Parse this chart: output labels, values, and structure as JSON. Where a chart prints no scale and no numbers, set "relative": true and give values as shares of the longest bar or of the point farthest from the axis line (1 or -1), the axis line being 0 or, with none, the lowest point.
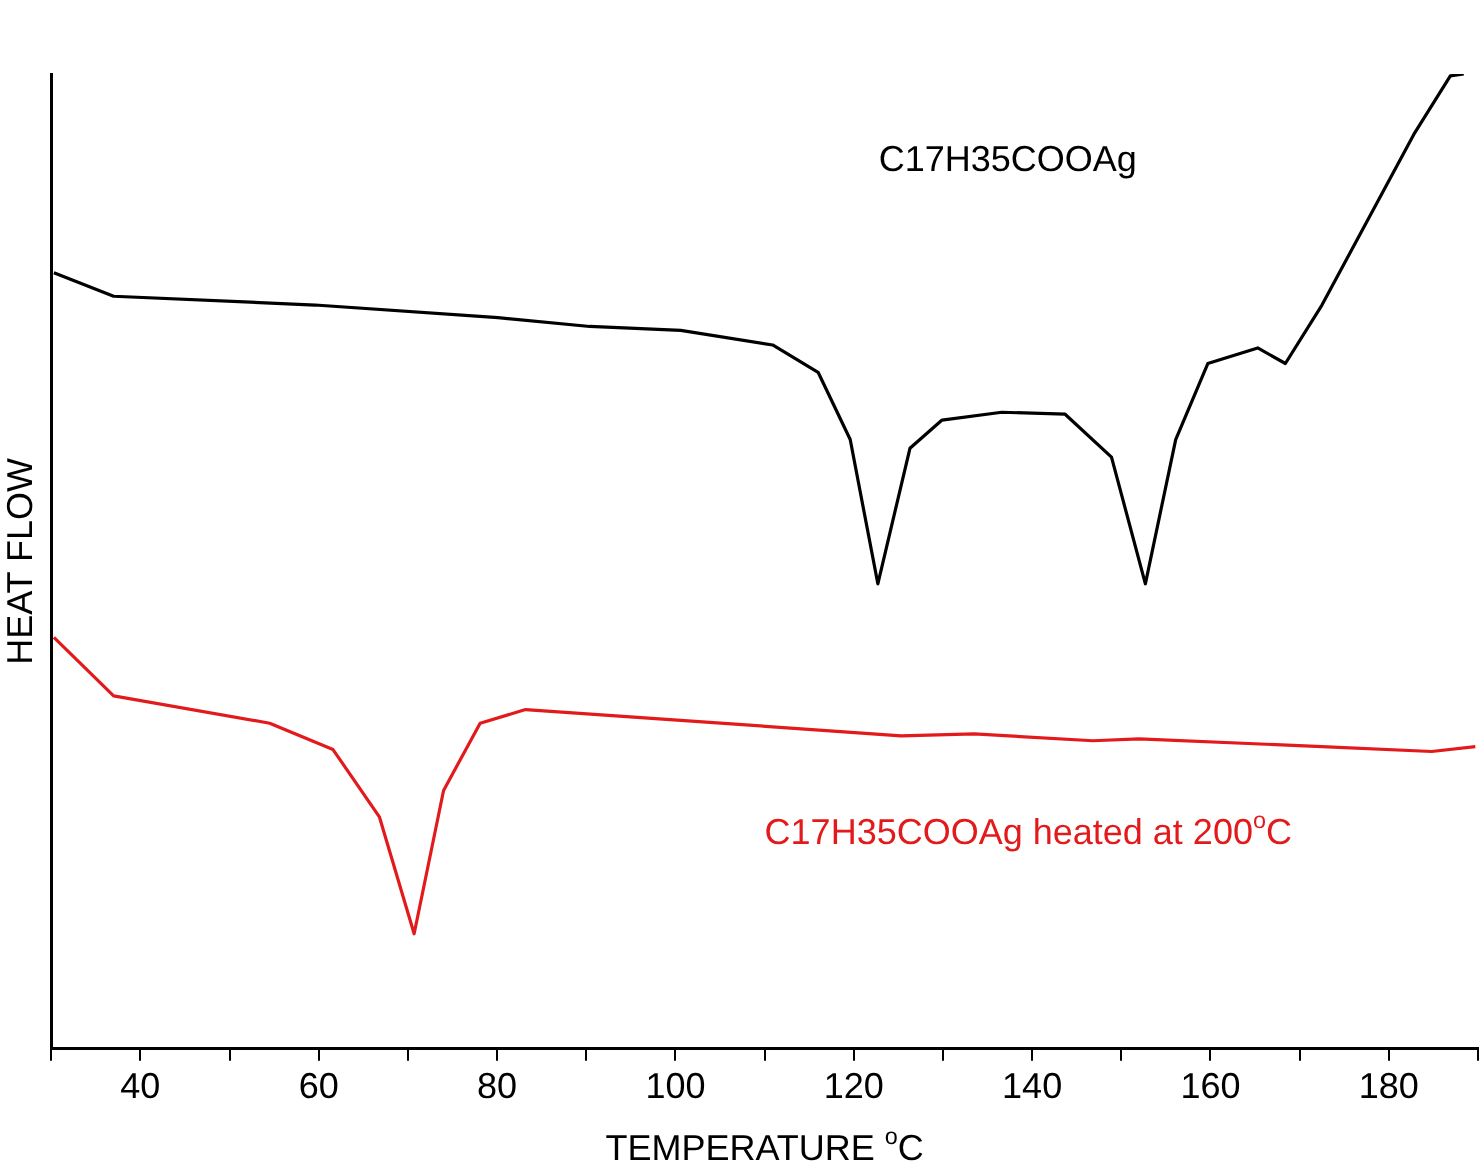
{
  "chart_data": {
    "type": "line",
    "relative": true,
    "xlabel": "TEMPERATURE $^{o}$C",
    "ylabel": "HEAT FLOW",
    "xlim": [
      30,
      190
    ],
    "xticks": [
      {
        "value": 30,
        "label": null
      },
      40,
      {
        "value": 50,
        "label": null
      },
      60,
      {
        "value": 70,
        "label": null
      },
      80,
      {
        "value": 90,
        "label": null
      },
      100,
      {
        "value": 110,
        "label": null
      },
      120,
      {
        "value": 130,
        "label": null
      },
      140,
      {
        "value": 150,
        "label": null
      },
      160,
      {
        "value": 170,
        "label": null
      },
      180,
      {
        "value": 190,
        "label": null
      }
    ],
    "grid": false,
    "legend": false,
    "marker": "none",
    "line_style": "solid",
    "series": [
      {
        "name": "C17H35COOAg",
        "color": "#000000",
        "x": [
          30.3,
          37.0,
          59.6,
          80.1,
          90.4,
          100.6,
          110.9,
          116.0,
          119.6,
          122.7,
          126.3,
          129.9,
          136.6,
          143.7,
          148.9,
          152.7,
          156.1,
          159.7,
          165.3,
          168.4,
          172.5,
          182.8,
          186.9,
          188.4
        ],
        "values": [
          0.796,
          0.772,
          0.763,
          0.75,
          0.741,
          0.737,
          0.722,
          0.694,
          0.625,
          0.477,
          0.616,
          0.645,
          0.653,
          0.651,
          0.607,
          0.477,
          0.625,
          0.703,
          0.719,
          0.703,
          0.763,
          0.938,
          0.998,
          1
        ]
      },
      {
        "name": "C17H35COOAg heated at 200$^{o}$C",
        "color": "#e31a1c",
        "x": [
          30.3,
          37.0,
          54.5,
          61.6,
          66.8,
          70.7,
          74.0,
          78.1,
          83.2,
          100.6,
          125.3,
          133.5,
          146.8,
          152.0,
          172.5,
          184.8,
          189.7
        ],
        "values": [
          0.422,
          0.362,
          0.334,
          0.307,
          0.238,
          0.118,
          0.265,
          0.334,
          0.348,
          0.337,
          0.321,
          0.323,
          0.316,
          0.318,
          0.31,
          0.305,
          0.31
        ]
      }
    ]
  }
}
